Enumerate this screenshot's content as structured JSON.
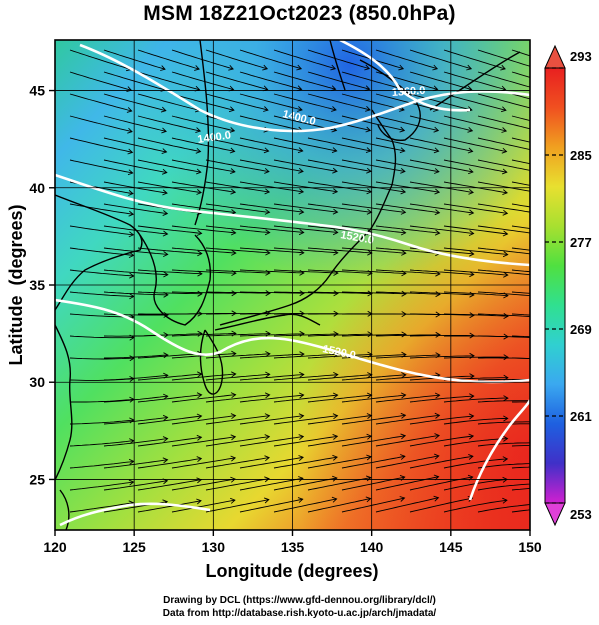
{
  "title": "MSM 18Z21Oct2023 (850.0hPa)",
  "map": {
    "xlabel": "Longitude (degrees)",
    "ylabel": "Latitude  (degrees)",
    "x_ticks": [
      "120",
      "125",
      "130",
      "135",
      "140",
      "145",
      "150"
    ],
    "y_ticks": [
      "25",
      "30",
      "35",
      "40",
      "45"
    ],
    "longitude_range": [
      120,
      150
    ],
    "latitude_range": [
      22.4,
      47.6
    ],
    "contour_labels": [
      "1400.0",
      "1400.0",
      "1360.0",
      "1520.0",
      "1520.0"
    ],
    "colors": {
      "land_outline": "#000000",
      "streamline": "#000000",
      "contour": "#ffffff"
    }
  },
  "colorbar": {
    "tick_labels": [
      "293",
      "285",
      "277",
      "269",
      "261",
      "253"
    ],
    "range": [
      253,
      293
    ],
    "colors": [
      "#d020d0",
      "#4030c8",
      "#1e60e0",
      "#3aa8f0",
      "#30d0d0",
      "#30e090",
      "#50e040",
      "#a8e030",
      "#e8e030",
      "#f0a020",
      "#f05020",
      "#e82020"
    ]
  },
  "credits": {
    "line1": "Drawing by DCL (https://www.gfd-dennou.org/library/dcl/)",
    "line2": "Data from http://database.rish.kyoto-u.ac.jp/arch/jmadata/"
  }
}
